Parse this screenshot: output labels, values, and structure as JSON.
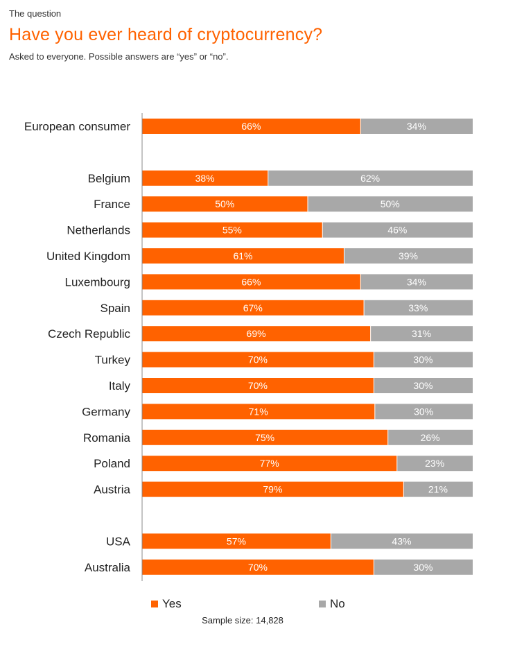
{
  "header": {
    "eyebrow": "The question",
    "title": "Have you ever heard of cryptocurrency?",
    "subtitle": "Asked to everyone. Possible answers are “yes” or “no”."
  },
  "colors": {
    "yes": "#ff6200",
    "no": "#a8a8a8"
  },
  "legend": {
    "yes": "Yes",
    "no": "No"
  },
  "footer": {
    "sample": "Sample size: 14,828"
  },
  "chart_data": {
    "type": "bar",
    "orientation": "horizontal",
    "stacked": true,
    "categories": [
      "European consumer",
      "Belgium",
      "France",
      "Netherlands",
      "United Kingdom",
      "Luxembourg",
      "Spain",
      "Czech Republic",
      "Turkey",
      "Italy",
      "Germany",
      "Romania",
      "Poland",
      "Austria",
      "USA",
      "Australia"
    ],
    "groups": [
      [
        0
      ],
      [
        1,
        2,
        3,
        4,
        5,
        6,
        7,
        8,
        9,
        10,
        11,
        12,
        13
      ],
      [
        14,
        15
      ]
    ],
    "series": [
      {
        "name": "Yes",
        "values": [
          66,
          38,
          50,
          55,
          61,
          66,
          67,
          69,
          70,
          70,
          71,
          75,
          77,
          79,
          57,
          70
        ],
        "labels": [
          "66%",
          "38%",
          "50%",
          "55%",
          "61%",
          "66%",
          "67%",
          "69%",
          "70%",
          "70%",
          "71%",
          "75%",
          "77%",
          "79%",
          "57%",
          "70%"
        ]
      },
      {
        "name": "No",
        "values": [
          34,
          62,
          50,
          46,
          39,
          34,
          33,
          31,
          30,
          30,
          30,
          26,
          23,
          21,
          43,
          30
        ],
        "labels": [
          "34%",
          "62%",
          "50%",
          "46%",
          "39%",
          "34%",
          "33%",
          "31%",
          "30%",
          "30%",
          "30%",
          "26%",
          "23%",
          "21%",
          "43%",
          "30%"
        ]
      }
    ],
    "unit": "%",
    "grid": false,
    "legend_position": "bottom"
  }
}
